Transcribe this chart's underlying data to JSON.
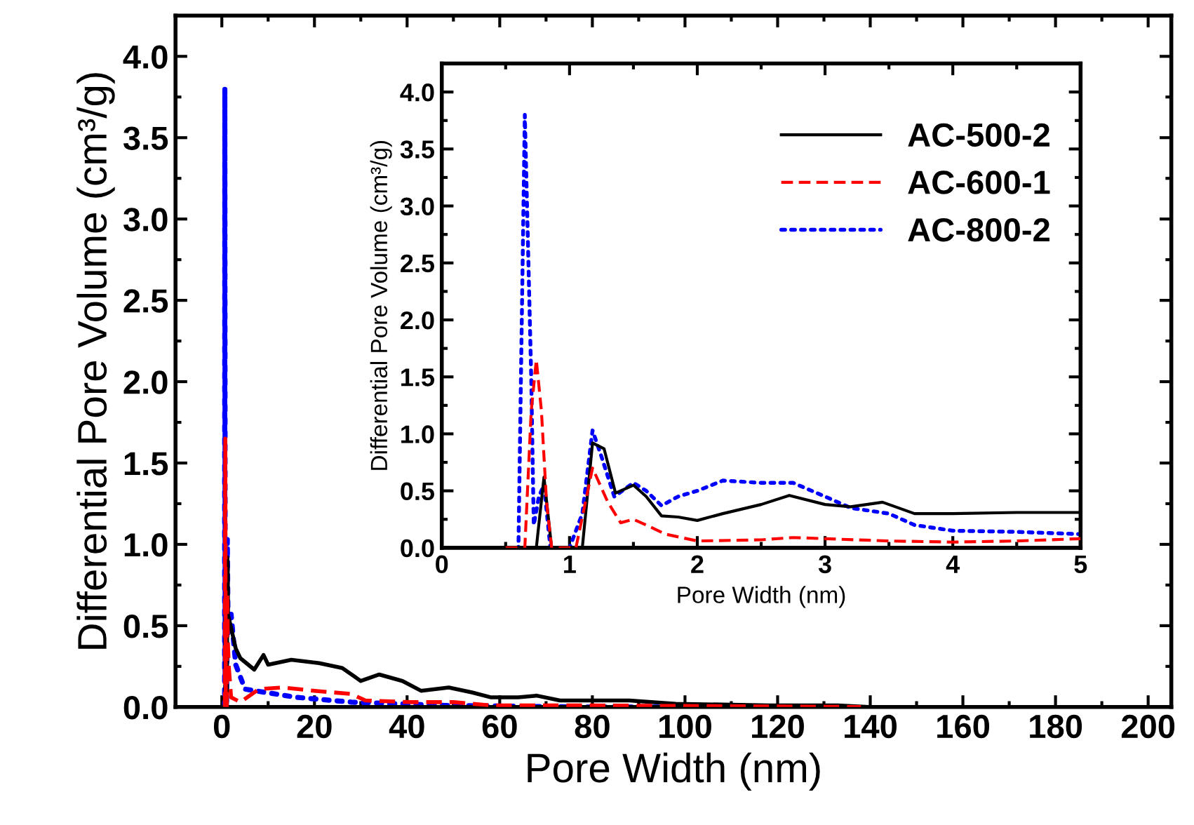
{
  "chart_data": [
    {
      "type": "line",
      "xlabel": "Pore Width (nm)",
      "ylabel": "Differential Pore Volume (cm³/g)",
      "xlim": [
        -10,
        205
      ],
      "ylim": [
        0,
        4.25
      ],
      "xticks": [
        0,
        20,
        40,
        60,
        80,
        100,
        120,
        140,
        160,
        180,
        200
      ],
      "yticks": [
        {
          "value": 0,
          "label": "0.0"
        },
        0.5,
        {
          "value": 1,
          "label": "1.0"
        },
        1.5,
        {
          "value": 2,
          "label": "2.0"
        },
        2.5,
        {
          "value": 3,
          "label": "3.0"
        },
        3.5,
        {
          "value": 4,
          "label": "4.0"
        }
      ],
      "grid": false,
      "legend": false,
      "tick_labels": "xy",
      "series": [
        {
          "color": "#000000",
          "line_style": "solid",
          "x": [
            0.5,
            0.74,
            0.8,
            0.86,
            1.1,
            1.18,
            1.27,
            1.36,
            1.5,
            3,
            4,
            7,
            9,
            10,
            15,
            21,
            26,
            30,
            34,
            39,
            43,
            49,
            54,
            58,
            64,
            68,
            73,
            88,
            98,
            118,
            133,
            140
          ],
          "values": [
            0,
            0,
            0.62,
            0,
            0,
            0.92,
            0.87,
            0.48,
            0.55,
            0.36,
            0.3,
            0.23,
            0.32,
            0.26,
            0.29,
            0.27,
            0.24,
            0.16,
            0.2,
            0.16,
            0.1,
            0.12,
            0.09,
            0.06,
            0.06,
            0.07,
            0.04,
            0.04,
            0.02,
            0.01,
            0.01,
            0
          ]
        },
        {
          "color": "#ff0000",
          "line_style": "dashed",
          "x": [
            0.5,
            0.65,
            0.7,
            0.74,
            0.78,
            0.82,
            0.86,
            1.05,
            1.18,
            1.3,
            1.5,
            2,
            4,
            8,
            13,
            20,
            28,
            31,
            41,
            50,
            58,
            78,
            138
          ],
          "values": [
            0,
            0,
            1.2,
            1.65,
            1.2,
            0.4,
            0,
            0,
            0.7,
            0.4,
            0.25,
            0.06,
            0.03,
            0.11,
            0.12,
            0.1,
            0.08,
            0.04,
            0.03,
            0.03,
            0.01,
            0.01,
            0
          ]
        },
        {
          "color": "#0000ff",
          "line_style": "dotted",
          "x": [
            0.5,
            0.6,
            0.65,
            0.7,
            0.72,
            0.76,
            0.8,
            0.85,
            1.0,
            1.1,
            1.18,
            1.25,
            1.35,
            1.5,
            2,
            3,
            5,
            16,
            28,
            48,
            78,
            128
          ],
          "values": [
            0,
            0,
            3.8,
            1.5,
            0.2,
            0.45,
            0.55,
            0,
            0,
            0.3,
            1.03,
            0.8,
            0.45,
            0.57,
            0.57,
            0.26,
            0.11,
            0.06,
            0.03,
            0.01,
            0,
            0
          ]
        }
      ]
    },
    {
      "type": "line",
      "xlabel": "Pore Width (nm)",
      "ylabel": "Differential Pore Volume (cm³/g)",
      "xlim": [
        0,
        5
      ],
      "ylim": [
        0,
        4.25
      ],
      "xticks": [
        0,
        1,
        2,
        3,
        4,
        5
      ],
      "yticks": [
        {
          "value": 0,
          "label": "0.0"
        },
        0.5,
        {
          "value": 1,
          "label": "1.0"
        },
        1.5,
        {
          "value": 2,
          "label": "2.0"
        },
        2.5,
        {
          "value": 3,
          "label": "3.0"
        },
        3.5,
        {
          "value": 4,
          "label": "4.0"
        }
      ],
      "grid": false,
      "legend": "upper right",
      "series": [
        {
          "name": "AC-500-2",
          "color": "#000000",
          "line_style": "solid",
          "x": [
            0.5,
            0.74,
            0.8,
            0.86,
            1.1,
            1.18,
            1.27,
            1.36,
            1.5,
            1.6,
            1.72,
            1.85,
            2.0,
            2.2,
            2.5,
            2.72,
            3.0,
            3.2,
            3.45,
            3.7,
            4.0,
            4.5,
            5.0
          ],
          "values": [
            0,
            0,
            0.62,
            0,
            0,
            0.92,
            0.87,
            0.48,
            0.55,
            0.45,
            0.28,
            0.27,
            0.24,
            0.3,
            0.38,
            0.46,
            0.38,
            0.36,
            0.4,
            0.3,
            0.3,
            0.31,
            0.31
          ]
        },
        {
          "name": "AC-600-1",
          "color": "#ff0000",
          "line_style": "dashed",
          "x": [
            0.5,
            0.65,
            0.7,
            0.74,
            0.78,
            0.82,
            0.86,
            1.05,
            1.18,
            1.3,
            1.4,
            1.5,
            1.6,
            1.75,
            2.0,
            2.5,
            2.75,
            3.0,
            3.5,
            4.0,
            4.5,
            5.0
          ],
          "values": [
            0,
            0,
            1.2,
            1.65,
            1.2,
            0.4,
            0,
            0,
            0.7,
            0.4,
            0.22,
            0.25,
            0.2,
            0.12,
            0.06,
            0.07,
            0.09,
            0.08,
            0.06,
            0.05,
            0.06,
            0.08
          ]
        },
        {
          "name": "AC-800-2",
          "color": "#0000ff",
          "line_style": "dotted",
          "x": [
            0.5,
            0.6,
            0.65,
            0.7,
            0.72,
            0.76,
            0.8,
            0.85,
            1.0,
            1.1,
            1.18,
            1.25,
            1.35,
            1.5,
            1.6,
            1.72,
            1.85,
            2.0,
            2.2,
            2.5,
            2.75,
            3.0,
            3.2,
            3.5,
            3.7,
            4.0,
            4.5,
            5.0
          ],
          "values": [
            0,
            0,
            3.8,
            1.5,
            0.2,
            0.45,
            0.55,
            0,
            0,
            0.3,
            1.03,
            0.8,
            0.45,
            0.57,
            0.5,
            0.37,
            0.45,
            0.5,
            0.59,
            0.57,
            0.57,
            0.45,
            0.35,
            0.3,
            0.2,
            0.15,
            0.14,
            0.12
          ]
        }
      ]
    }
  ]
}
